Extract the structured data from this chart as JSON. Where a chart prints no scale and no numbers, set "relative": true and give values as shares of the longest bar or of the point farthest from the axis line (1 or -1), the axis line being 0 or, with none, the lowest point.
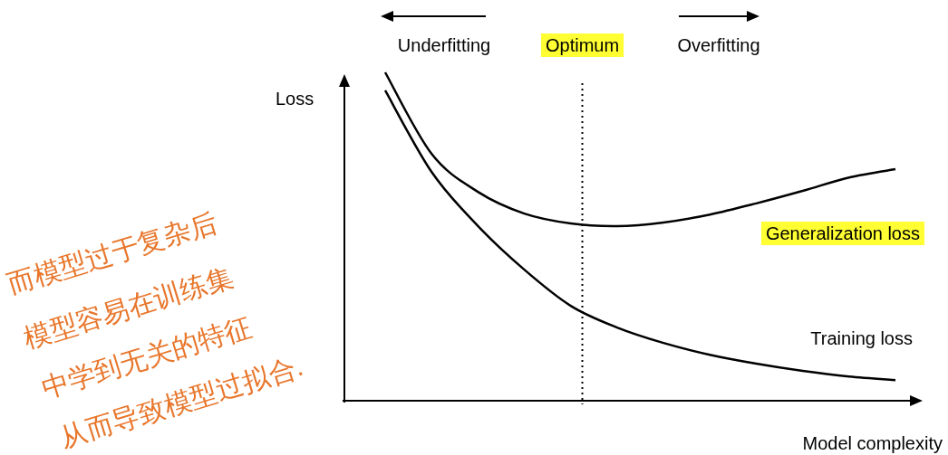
{
  "chart_data": {
    "type": "line",
    "relative": true,
    "xlabel": "Model complexity",
    "ylabel": "Loss",
    "categories": [
      null,
      null,
      null,
      null,
      null,
      null,
      null,
      null,
      null,
      null,
      null,
      null
    ],
    "series": [
      {
        "name": "Generalization loss",
        "color": "#000000",
        "values": [
          1,
          0.752,
          0.636,
          0.57,
          0.54,
          0.532,
          0.543,
          0.567,
          0.601,
          0.639,
          0.68,
          0.705
        ]
      },
      {
        "name": "Training loss",
        "color": "#000000",
        "values": [
          0.945,
          0.697,
          0.532,
          0.399,
          0.289,
          0.223,
          0.176,
          0.14,
          0.113,
          0.091,
          0.074,
          0.063
        ]
      }
    ],
    "annotations": [
      "Underfitting",
      "Optimum",
      "Overfitting",
      "而模型过于复杂后",
      "模型容易在训练集",
      "中学到无关的特征",
      "从而导致模型过拟合."
    ],
    "line_style": "solid"
  }
}
